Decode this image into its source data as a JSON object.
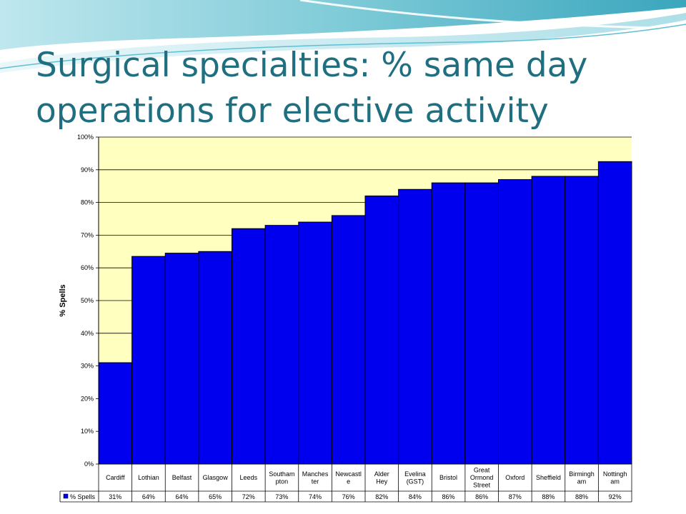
{
  "slide": {
    "title": "Surgical specialties: % same day operations for elective activity"
  },
  "colors": {
    "title": "#1f6f80",
    "plot_background": "#ffffc0",
    "bar": "#0000ee"
  },
  "chart_data": {
    "type": "bar",
    "categories": [
      "Cardiff",
      "Lothian",
      "Belfast",
      "Glasgow",
      "Leeds",
      "Southam pton",
      "Manches ter",
      "Newcastl e",
      "Alder Hey",
      "Evelina (GST)",
      "Bristol",
      "Great Ormond Street",
      "Oxford",
      "Sheffield",
      "Birmingh am",
      "Nottingh am"
    ],
    "category_lines": [
      [
        "Cardiff"
      ],
      [
        "Lothian"
      ],
      [
        "Belfast"
      ],
      [
        "Glasgow"
      ],
      [
        "Leeds"
      ],
      [
        "Southam",
        "pton"
      ],
      [
        "Manches",
        "ter"
      ],
      [
        "Newcastl",
        "e"
      ],
      [
        "Alder",
        "Hey"
      ],
      [
        "Evelina",
        "(GST)"
      ],
      [
        "Bristol"
      ],
      [
        "Great",
        "Ormond",
        "Street"
      ],
      [
        "Oxford"
      ],
      [
        "Sheffield"
      ],
      [
        "Birmingh",
        "am"
      ],
      [
        "Nottingh",
        "am"
      ]
    ],
    "series": [
      {
        "name": "% Spells",
        "values": [
          31,
          63.5,
          64.5,
          65,
          72,
          73,
          74,
          76,
          82,
          84,
          86,
          86,
          87,
          88,
          88,
          92.5
        ],
        "labels": [
          "31%",
          "64%",
          "64%",
          "65%",
          "72%",
          "73%",
          "74%",
          "76%",
          "82%",
          "84%",
          "86%",
          "86%",
          "87%",
          "88%",
          "88%",
          "92%"
        ]
      }
    ],
    "ylabel": "% Spells",
    "xlabel": "",
    "ylim": [
      0,
      100
    ],
    "yticks": [
      "0%",
      "10%",
      "20%",
      "30%",
      "40%",
      "50%",
      "60%",
      "70%",
      "80%",
      "90%",
      "100%"
    ],
    "grid": true,
    "data_table": true,
    "legend": "data-table"
  }
}
